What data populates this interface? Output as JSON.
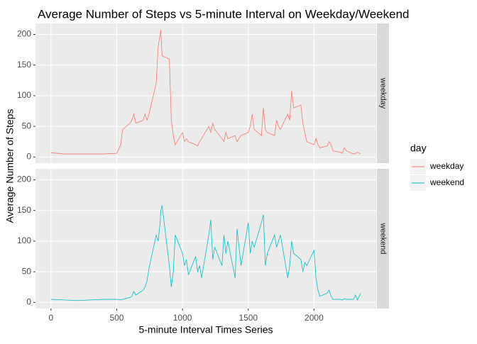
{
  "chart_data": {
    "type": "line",
    "title": "Average Number of Steps vs 5-minute Interval on Weekday/Weekend",
    "x_label": "5-minute Interval Times Series",
    "y_label": "Average Number of Steps",
    "legend_title": "day",
    "legend_position": "right",
    "grid": true,
    "facet_by_series": true,
    "x": [
      0,
      100,
      200,
      300,
      400,
      500,
      530,
      545,
      600,
      615,
      630,
      645,
      700,
      715,
      730,
      745,
      800,
      815,
      830,
      835,
      845,
      900,
      915,
      930,
      945,
      1000,
      1015,
      1030,
      1045,
      1100,
      1115,
      1130,
      1145,
      1200,
      1215,
      1230,
      1245,
      1300,
      1315,
      1330,
      1345,
      1400,
      1415,
      1430,
      1445,
      1500,
      1515,
      1530,
      1545,
      1600,
      1615,
      1630,
      1645,
      1700,
      1715,
      1730,
      1745,
      1800,
      1815,
      1830,
      1845,
      1900,
      1915,
      1930,
      1945,
      2000,
      2015,
      2030,
      2045,
      2100,
      2115,
      2130,
      2145,
      2200,
      2215,
      2230,
      2245,
      2300,
      2315,
      2330,
      2355
    ],
    "series": [
      {
        "name": "weekday",
        "color": "#F8766D",
        "values": [
          7,
          5,
          5,
          5,
          5,
          6,
          20,
          45,
          55,
          60,
          70,
          55,
          60,
          70,
          60,
          70,
          120,
          180,
          200,
          207,
          165,
          160,
          60,
          35,
          20,
          40,
          25,
          30,
          25,
          20,
          18,
          25,
          30,
          50,
          40,
          55,
          45,
          30,
          25,
          40,
          30,
          35,
          25,
          30,
          35,
          40,
          50,
          70,
          45,
          35,
          80,
          45,
          40,
          35,
          60,
          50,
          45,
          70,
          60,
          108,
          80,
          85,
          55,
          40,
          25,
          20,
          30,
          20,
          15,
          18,
          25,
          20,
          10,
          8,
          6,
          15,
          10,
          5,
          6,
          8,
          5
        ]
      },
      {
        "name": "weekend",
        "color": "#00BFC4",
        "values": [
          5,
          4,
          3,
          4,
          5,
          5,
          4,
          5,
          8,
          10,
          18,
          12,
          20,
          25,
          35,
          55,
          110,
          100,
          130,
          150,
          158,
          60,
          25,
          50,
          110,
          80,
          60,
          70,
          45,
          75,
          50,
          60,
          40,
          110,
          135,
          70,
          90,
          60,
          110,
          80,
          100,
          40,
          120,
          90,
          60,
          130,
          80,
          100,
          90,
          130,
          143,
          60,
          80,
          110,
          90,
          100,
          110,
          40,
          60,
          100,
          80,
          70,
          50,
          65,
          60,
          85,
          40,
          20,
          10,
          15,
          20,
          10,
          5,
          5,
          4,
          6,
          5,
          5,
          12,
          4,
          15
        ]
      }
    ],
    "xlim": [
      -117.75,
      2472.75
    ],
    "xticks": [
      0,
      500,
      1000,
      1500,
      2000
    ],
    "ylim": [
      -10,
      218
    ],
    "yticks": [
      0,
      50,
      100,
      150,
      200
    ]
  }
}
